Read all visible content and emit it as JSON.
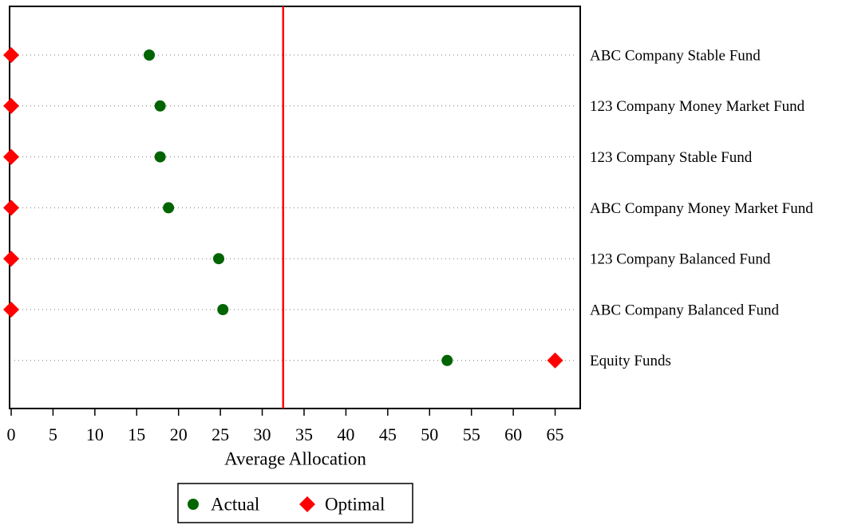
{
  "chart_data": {
    "type": "dot",
    "categories": [
      "ABC Company Stable Fund",
      "123 Company Money Market Fund",
      "123 Company Stable Fund",
      "ABC Company Money Market Fund",
      "123 Company Balanced Fund",
      "ABC Company Balanced Fund",
      "Equity Funds"
    ],
    "series": [
      {
        "name": "Actual",
        "color": "#006400",
        "marker": "circle",
        "values": [
          16.5,
          17.8,
          17.8,
          18.8,
          24.8,
          25.3,
          52.1
        ]
      },
      {
        "name": "Optimal",
        "color": "#ff0000",
        "marker": "diamond",
        "values": [
          0,
          0,
          0,
          0,
          0,
          0,
          65
        ]
      }
    ],
    "xlabel": "Average Allocation",
    "xlim": [
      0,
      68
    ],
    "xticks": [
      0,
      5,
      10,
      15,
      20,
      25,
      30,
      35,
      40,
      45,
      50,
      55,
      60,
      65
    ],
    "vline": 32.5,
    "vline_color": "#ff0000",
    "legend": "bottom"
  }
}
